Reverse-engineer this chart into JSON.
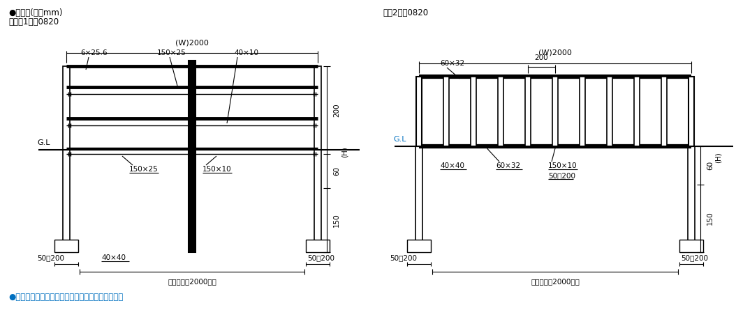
{
  "title_left_line1": "●据付図(単位mm)",
  "title_left_line2": "　図は1型、0820",
  "title_right": "図は2型、0820",
  "footer": "●本製品は建築基準法に基づき設計されています。",
  "bg_color": "#ffffff",
  "line_color": "#000000",
  "text_color": "#000000",
  "blue_color": "#0070c0",
  "fs_title": 8.5,
  "fs_label": 8,
  "fs_dim": 7.5,
  "fs_footer": 8.5
}
